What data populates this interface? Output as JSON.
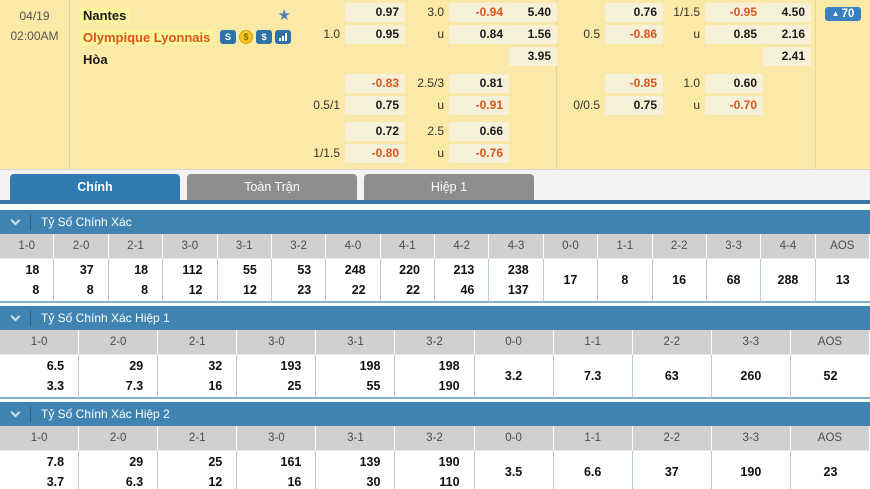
{
  "match": {
    "date": "04/19",
    "time": "02:00AM",
    "home_team": "Nantes",
    "away_team": "Olympique Lyonnais",
    "draw_label": "Hòa",
    "rank_badge": "70",
    "icons": [
      {
        "name": "betslip-icon",
        "glyph": "S",
        "type": "square"
      },
      {
        "name": "coin-icon",
        "glyph": "$",
        "type": "coin"
      },
      {
        "name": "cash-icon",
        "glyph": "$",
        "type": "square"
      },
      {
        "name": "bar-chart-icon",
        "glyph": "",
        "type": "bars"
      }
    ]
  },
  "odds_left": {
    "groups": [
      {
        "rows": [
          [
            "",
            "0.97",
            "3.0",
            "-0.94",
            "5.40"
          ],
          [
            "1.0",
            "0.95",
            "u",
            "0.84",
            "1.56"
          ],
          [
            "",
            "",
            "",
            "",
            "3.95"
          ]
        ]
      },
      {
        "rows": [
          [
            "",
            "-0.83",
            "2.5/3",
            "0.81",
            ""
          ],
          [
            "0.5/1",
            "0.75",
            "u",
            "-0.91",
            ""
          ]
        ]
      },
      {
        "rows": [
          [
            "",
            "0.72",
            "2.5",
            "0.66",
            ""
          ],
          [
            "1/1.5",
            "-0.80",
            "u",
            "-0.76",
            ""
          ]
        ]
      }
    ]
  },
  "odds_right": {
    "groups": [
      {
        "rows": [
          [
            "",
            "0.76",
            "1/1.5",
            "-0.95",
            "4.50"
          ],
          [
            "0.5",
            "-0.86",
            "u",
            "0.85",
            "2.16"
          ],
          [
            "",
            "",
            "",
            "",
            "2.41"
          ]
        ]
      },
      {
        "rows": [
          [
            "",
            "-0.85",
            "1.0",
            "0.60",
            ""
          ],
          [
            "0/0.5",
            "0.75",
            "u",
            "-0.70",
            ""
          ]
        ]
      }
    ]
  },
  "tabs": [
    {
      "label": "Chính",
      "active": true
    },
    {
      "label": "Toàn Trận",
      "active": false
    },
    {
      "label": "Hiệp 1",
      "active": false
    }
  ],
  "sections": [
    {
      "title": "Tỷ Số Chính Xác",
      "columns": [
        "1-0",
        "2-0",
        "2-1",
        "3-0",
        "3-1",
        "3-2",
        "4-0",
        "4-1",
        "4-2",
        "4-3",
        "0-0",
        "1-1",
        "2-2",
        "3-3",
        "4-4",
        "AOS"
      ],
      "values": [
        [
          "18",
          "8"
        ],
        [
          "37",
          "8"
        ],
        [
          "18",
          "8"
        ],
        [
          "112",
          "12"
        ],
        [
          "55",
          "12"
        ],
        [
          "53",
          "23"
        ],
        [
          "248",
          "22"
        ],
        [
          "220",
          "22"
        ],
        [
          "213",
          "46"
        ],
        [
          "238",
          "137"
        ],
        [
          "17"
        ],
        [
          "8"
        ],
        [
          "16"
        ],
        [
          "68"
        ],
        [
          "288"
        ],
        [
          "13"
        ]
      ]
    },
    {
      "title": "Tỷ Số Chính Xác Hiệp 1",
      "columns": [
        "1-0",
        "2-0",
        "2-1",
        "3-0",
        "3-1",
        "3-2",
        "0-0",
        "1-1",
        "2-2",
        "3-3",
        "AOS"
      ],
      "values": [
        [
          "6.5",
          "3.3"
        ],
        [
          "29",
          "7.3"
        ],
        [
          "32",
          "16"
        ],
        [
          "193",
          "25"
        ],
        [
          "198",
          "55"
        ],
        [
          "198",
          "190"
        ],
        [
          "3.2"
        ],
        [
          "7.3"
        ],
        [
          "63"
        ],
        [
          "260"
        ],
        [
          "52"
        ]
      ]
    },
    {
      "title": "Tỷ Số Chính Xác Hiệp 2",
      "columns": [
        "1-0",
        "2-0",
        "2-1",
        "3-0",
        "3-1",
        "3-2",
        "0-0",
        "1-1",
        "2-2",
        "3-3",
        "AOS"
      ],
      "values": [
        [
          "7.8",
          "3.7"
        ],
        [
          "29",
          "6.3"
        ],
        [
          "25",
          "12"
        ],
        [
          "161",
          "16"
        ],
        [
          "139",
          "30"
        ],
        [
          "190",
          "110"
        ],
        [
          "3.5"
        ],
        [
          "6.6"
        ],
        [
          "37"
        ],
        [
          "190"
        ],
        [
          "23"
        ]
      ]
    }
  ],
  "colors": {
    "panel_bg": "#fbe9a7",
    "chip_bg": "#f8f1da",
    "negative_odds": "#d8541c",
    "away_team": "#d9531e",
    "active_tab": "#2e7ab2",
    "inactive_tab": "#8d8d8d",
    "section_header": "#4084b2",
    "col_header_bg": "#d0d0d0"
  }
}
